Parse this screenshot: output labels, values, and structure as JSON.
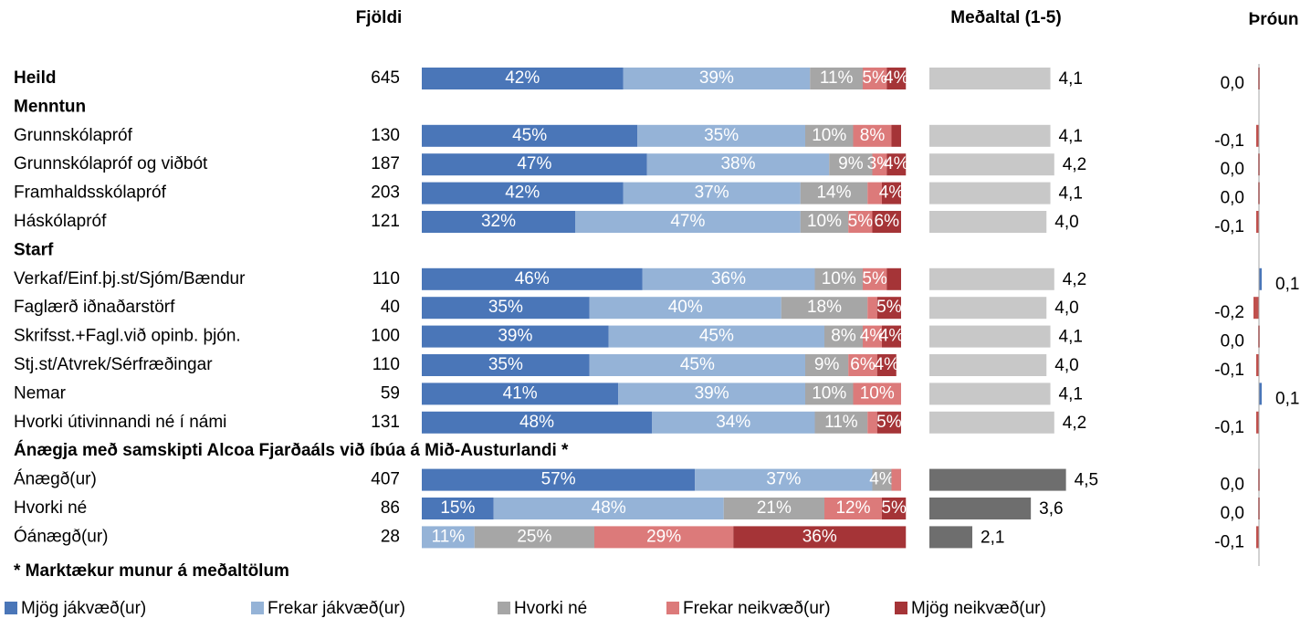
{
  "chart_data": {
    "type": "stacked-table",
    "headers": {
      "count": "Fjöldi",
      "mean": "Meðaltal (1-5)",
      "trend": "Þróun"
    },
    "series": [
      {
        "name": "Mjög jákvæð(ur)",
        "color": "#4a76b8"
      },
      {
        "name": "Frekar jákvæð(ur)",
        "color": "#95b3d7"
      },
      {
        "name": "Hvorki né",
        "color": "#a6a6a6"
      },
      {
        "name": "Frekar neikvæð(ur)",
        "color": "#dc7a7a"
      },
      {
        "name": "Mjög neikvæð(ur)",
        "color": "#a53437"
      }
    ],
    "xlim": [
      0,
      100
    ],
    "mean_xlim": [
      1,
      5
    ],
    "trend_xlim": [
      -1,
      1
    ],
    "rows": [
      {
        "label": "Heild",
        "bold": true,
        "count": 645,
        "values": [
          42,
          39,
          11,
          5,
          4
        ],
        "value_labels": [
          "42%",
          "39%",
          "11%",
          "5%",
          "4%"
        ],
        "mean": 4.1,
        "mean_label": "4,1",
        "mean_color": "#c8c8c8",
        "trend": 0.0,
        "trend_label": "0,0"
      },
      {
        "label": "Menntun",
        "bold": true
      },
      {
        "label": "Grunnskólapróf",
        "count": 130,
        "values": [
          45,
          35,
          10,
          8,
          2
        ],
        "value_labels": [
          "45%",
          "35%",
          "10%",
          "8%",
          null
        ],
        "mean": 4.1,
        "mean_label": "4,1",
        "mean_color": "#c8c8c8",
        "trend": -0.1,
        "trend_label": "-0,1"
      },
      {
        "label": "Grunnskólapróf og viðbót",
        "count": 187,
        "values": [
          47,
          38,
          9,
          3,
          4
        ],
        "value_labels": [
          "47%",
          "38%",
          "9%",
          "3%",
          "4%"
        ],
        "mean": 4.2,
        "mean_label": "4,2",
        "mean_color": "#c8c8c8",
        "trend": 0.0,
        "trend_label": "0,0"
      },
      {
        "label": "Framhaldsskólapróf",
        "count": 203,
        "values": [
          42,
          37,
          14,
          3,
          4
        ],
        "value_labels": [
          "42%",
          "37%",
          "14%",
          null,
          "4%"
        ],
        "mean": 4.1,
        "mean_label": "4,1",
        "mean_color": "#c8c8c8",
        "trend": 0.0,
        "trend_label": "0,0"
      },
      {
        "label": "Háskólapróf",
        "count": 121,
        "values": [
          32,
          47,
          10,
          5,
          6
        ],
        "value_labels": [
          "32%",
          "47%",
          "10%",
          "5%",
          "6%"
        ],
        "mean": 4.0,
        "mean_label": "4,0",
        "mean_color": "#c8c8c8",
        "trend": -0.1,
        "trend_label": "-0,1"
      },
      {
        "label": "Starf",
        "bold": true
      },
      {
        "label": "Verkaf/Einf.þj.st/Sjóm/Bændur",
        "count": 110,
        "values": [
          46,
          36,
          10,
          5,
          3
        ],
        "value_labels": [
          "46%",
          "36%",
          "10%",
          "5%",
          null
        ],
        "mean": 4.2,
        "mean_label": "4,2",
        "mean_color": "#c8c8c8",
        "trend": 0.1,
        "trend_label": "0,1"
      },
      {
        "label": "Faglærð iðnaðarstörf",
        "count": 40,
        "values": [
          35,
          40,
          18,
          2,
          5
        ],
        "value_labels": [
          "35%",
          "40%",
          "18%",
          null,
          "5%"
        ],
        "mean": 4.0,
        "mean_label": "4,0",
        "mean_color": "#c8c8c8",
        "trend": -0.2,
        "trend_label": "-0,2"
      },
      {
        "label": "Skrifsst.+Fagl.við opinb. þjón.",
        "count": 100,
        "values": [
          39,
          45,
          8,
          4,
          4
        ],
        "value_labels": [
          "39%",
          "45%",
          "8%",
          "4%",
          "4%"
        ],
        "mean": 4.1,
        "mean_label": "4,1",
        "mean_color": "#c8c8c8",
        "trend": 0.0,
        "trend_label": "0,0"
      },
      {
        "label": "Stj.st/Atvrek/Sérfræðingar",
        "count": 110,
        "values": [
          35,
          45,
          9,
          6,
          4
        ],
        "value_labels": [
          "35%",
          "45%",
          "9%",
          "6%",
          "4%"
        ],
        "mean": 4.0,
        "mean_label": "4,0",
        "mean_color": "#c8c8c8",
        "trend": -0.1,
        "trend_label": "-0,1"
      },
      {
        "label": "Nemar",
        "count": 59,
        "values": [
          41,
          39,
          10,
          10,
          null
        ],
        "value_labels": [
          "41%",
          "39%",
          "10%",
          "10%",
          null
        ],
        "mean": 4.1,
        "mean_label": "4,1",
        "mean_color": "#c8c8c8",
        "trend": 0.1,
        "trend_label": "0,1"
      },
      {
        "label": "Hvorki útivinnandi né í námi",
        "count": 131,
        "values": [
          48,
          34,
          11,
          2,
          5
        ],
        "value_labels": [
          "48%",
          "34%",
          "11%",
          null,
          "5%"
        ],
        "mean": 4.2,
        "mean_label": "4,2",
        "mean_color": "#c8c8c8",
        "trend": -0.1,
        "trend_label": "-0,1"
      },
      {
        "label": "Ánægja með samskipti Alcoa Fjarðaáls við íbúa á Mið-Austurlandi *",
        "bold": true
      },
      {
        "label": "Ánægð(ur)",
        "count": 407,
        "values": [
          57,
          37,
          4,
          2,
          null
        ],
        "value_labels": [
          "57%",
          "37%",
          "4%",
          null,
          null
        ],
        "mean": 4.5,
        "mean_label": "4,5",
        "mean_color": "#6e6e6e",
        "trend": 0.0,
        "trend_label": "0,0"
      },
      {
        "label": "Hvorki né",
        "count": 86,
        "values": [
          15,
          48,
          21,
          12,
          5
        ],
        "value_labels": [
          "15%",
          "48%",
          "21%",
          "12%",
          "5%"
        ],
        "mean": 3.6,
        "mean_label": "3,6",
        "mean_color": "#6e6e6e",
        "trend": 0.0,
        "trend_label": "0,0"
      },
      {
        "label": "Óánægð(ur)",
        "count": 28,
        "values": [
          null,
          11,
          25,
          29,
          36
        ],
        "value_labels": [
          null,
          "11%",
          "25%",
          "29%",
          "36%"
        ],
        "mean": 2.1,
        "mean_label": "2,1",
        "mean_color": "#6e6e6e",
        "trend": -0.1,
        "trend_label": "-0,1"
      }
    ],
    "footnote": "* Marktækur munur á meðaltölum"
  }
}
